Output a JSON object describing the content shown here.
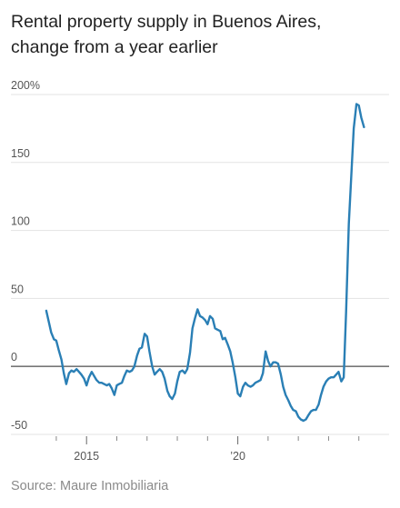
{
  "chart_data": {
    "type": "line",
    "title": "Rental property supply in Buenos Aires,",
    "subtitle": "change from a year earlier",
    "source": "Source: Maure Inmobiliaria",
    "ylim": [
      -55,
      205
    ],
    "xlim": [
      2012.5,
      2025.0
    ],
    "y_ticks": [
      {
        "value": 200,
        "label": "200%"
      },
      {
        "value": 150,
        "label": "150"
      },
      {
        "value": 100,
        "label": "100"
      },
      {
        "value": 50,
        "label": "50"
      },
      {
        "value": 0,
        "label": "0"
      },
      {
        "value": -50,
        "label": "-50"
      }
    ],
    "x_major_ticks": [
      {
        "value": 2015,
        "label": "2015"
      },
      {
        "value": 2020,
        "label": "’20"
      }
    ],
    "x_minor_ticks": [
      2014,
      2016,
      2017,
      2018,
      2019,
      2021,
      2022,
      2023,
      2024
    ],
    "grid": true,
    "line_color": "#2a7fb5",
    "zero_line_color": "#777777",
    "series": [
      {
        "name": "",
        "points": [
          [
            2013.67,
            41
          ],
          [
            2013.75,
            33
          ],
          [
            2013.83,
            25
          ],
          [
            2013.92,
            20
          ],
          [
            2014.0,
            19
          ],
          [
            2014.08,
            12
          ],
          [
            2014.17,
            5
          ],
          [
            2014.25,
            -5
          ],
          [
            2014.33,
            -13
          ],
          [
            2014.42,
            -5
          ],
          [
            2014.5,
            -3
          ],
          [
            2014.58,
            -4
          ],
          [
            2014.67,
            -2
          ],
          [
            2014.75,
            -4
          ],
          [
            2014.83,
            -6
          ],
          [
            2014.92,
            -9
          ],
          [
            2015.0,
            -14
          ],
          [
            2015.08,
            -8
          ],
          [
            2015.17,
            -4
          ],
          [
            2015.25,
            -7
          ],
          [
            2015.33,
            -10
          ],
          [
            2015.42,
            -12
          ],
          [
            2015.5,
            -12
          ],
          [
            2015.58,
            -13
          ],
          [
            2015.67,
            -14
          ],
          [
            2015.75,
            -13
          ],
          [
            2015.83,
            -16
          ],
          [
            2015.92,
            -21
          ],
          [
            2016.0,
            -14
          ],
          [
            2016.08,
            -13
          ],
          [
            2016.17,
            -12
          ],
          [
            2016.25,
            -7
          ],
          [
            2016.33,
            -3
          ],
          [
            2016.42,
            -4
          ],
          [
            2016.5,
            -3
          ],
          [
            2016.58,
            0
          ],
          [
            2016.67,
            8
          ],
          [
            2016.75,
            13
          ],
          [
            2016.83,
            14
          ],
          [
            2016.92,
            24
          ],
          [
            2017.0,
            22
          ],
          [
            2017.08,
            11
          ],
          [
            2017.17,
            0
          ],
          [
            2017.25,
            -6
          ],
          [
            2017.33,
            -4
          ],
          [
            2017.42,
            -2
          ],
          [
            2017.5,
            -4
          ],
          [
            2017.58,
            -9
          ],
          [
            2017.67,
            -18
          ],
          [
            2017.75,
            -22
          ],
          [
            2017.83,
            -24
          ],
          [
            2017.92,
            -20
          ],
          [
            2018.0,
            -11
          ],
          [
            2018.08,
            -4
          ],
          [
            2018.17,
            -3
          ],
          [
            2018.25,
            -5
          ],
          [
            2018.33,
            -2
          ],
          [
            2018.42,
            10
          ],
          [
            2018.5,
            28
          ],
          [
            2018.58,
            35
          ],
          [
            2018.67,
            42
          ],
          [
            2018.75,
            37
          ],
          [
            2018.83,
            36
          ],
          [
            2018.92,
            34
          ],
          [
            2019.0,
            31
          ],
          [
            2019.08,
            37
          ],
          [
            2019.17,
            35
          ],
          [
            2019.25,
            28
          ],
          [
            2019.33,
            27
          ],
          [
            2019.42,
            26
          ],
          [
            2019.5,
            20
          ],
          [
            2019.58,
            21
          ],
          [
            2019.67,
            16
          ],
          [
            2019.75,
            11
          ],
          [
            2019.83,
            3
          ],
          [
            2019.92,
            -8
          ],
          [
            2020.0,
            -20
          ],
          [
            2020.08,
            -22
          ],
          [
            2020.17,
            -15
          ],
          [
            2020.25,
            -12
          ],
          [
            2020.33,
            -14
          ],
          [
            2020.42,
            -15
          ],
          [
            2020.5,
            -14
          ],
          [
            2020.58,
            -12
          ],
          [
            2020.67,
            -11
          ],
          [
            2020.75,
            -10
          ],
          [
            2020.83,
            -5
          ],
          [
            2020.92,
            11
          ],
          [
            2021.0,
            4
          ],
          [
            2021.08,
            0
          ],
          [
            2021.17,
            3
          ],
          [
            2021.25,
            3
          ],
          [
            2021.33,
            2
          ],
          [
            2021.42,
            -6
          ],
          [
            2021.5,
            -15
          ],
          [
            2021.58,
            -21
          ],
          [
            2021.67,
            -25
          ],
          [
            2021.75,
            -29
          ],
          [
            2021.83,
            -32
          ],
          [
            2021.92,
            -33
          ],
          [
            2022.0,
            -37
          ],
          [
            2022.08,
            -39
          ],
          [
            2022.17,
            -40
          ],
          [
            2022.25,
            -39
          ],
          [
            2022.33,
            -36
          ],
          [
            2022.42,
            -33
          ],
          [
            2022.5,
            -32
          ],
          [
            2022.58,
            -32
          ],
          [
            2022.67,
            -28
          ],
          [
            2022.75,
            -21
          ],
          [
            2022.83,
            -15
          ],
          [
            2022.92,
            -11
          ],
          [
            2023.0,
            -9
          ],
          [
            2023.08,
            -8
          ],
          [
            2023.17,
            -8
          ],
          [
            2023.25,
            -6
          ],
          [
            2023.33,
            -4
          ],
          [
            2023.42,
            -11
          ],
          [
            2023.5,
            -8
          ],
          [
            2023.58,
            40
          ],
          [
            2023.67,
            105
          ],
          [
            2023.75,
            140
          ],
          [
            2023.83,
            175
          ],
          [
            2023.92,
            193
          ],
          [
            2024.0,
            192
          ],
          [
            2024.08,
            183
          ],
          [
            2024.17,
            176
          ]
        ]
      }
    ]
  }
}
